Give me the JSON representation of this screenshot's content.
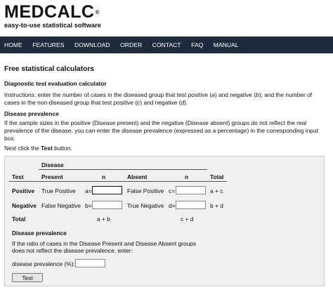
{
  "header": {
    "logo": "MEDCALC",
    "registered": "®",
    "tagline": "easy-to-use statistical software"
  },
  "nav": [
    "HOME",
    "FEATURES",
    "DOWNLOAD",
    "ORDER",
    "CONTACT",
    "FAQ",
    "MANUAL"
  ],
  "page": {
    "title": "Free statistical calculators",
    "subtitle": "Diagnostic test evaluation calculator",
    "instructions_pre": "Instructions: enter the number of cases in the diseased group that test positive (",
    "instructions_a": "a",
    "instructions_mid1": ") and negative (",
    "instructions_b": "b",
    "instructions_mid2": "); and the number of cases in the non-diseased group that test positive (",
    "instructions_c": "c",
    "instructions_mid3": ") and negative (",
    "instructions_d": "d",
    "instructions_end": ").",
    "prevalence_heading": "Disease prevalence",
    "prevalence_text": "If the sample sizes in the positive (Disease present) and the negative (Disease absent) groups do not reflect the real prevalence of the disease, you can enter the disease prevalence (expressed as a percentage) in the corresponding input box.",
    "next_pre": "Next click the ",
    "next_bold": "Test",
    "next_post": " button."
  },
  "form": {
    "disease_header": "Disease",
    "col_test": "Test",
    "col_present": "Present",
    "col_n1": "n",
    "col_absent": "Absent",
    "col_n2": "n",
    "col_total": "Total",
    "row_positive": "Positive",
    "true_positive": "True Positive",
    "label_a": "a=",
    "false_positive": "False Positive",
    "label_c": "c=",
    "total_ac": "a + c",
    "row_negative": "Negative",
    "false_negative": "False Negative",
    "label_b": "b=",
    "true_negative": "True Negative",
    "label_d": "d=",
    "total_bd": "b + d",
    "row_total": "Total",
    "total_ab": "a + b",
    "total_cd": "c + d",
    "prev_heading": "Disease prevalence",
    "prev_note_1": "If the ratio of cases in the Disease Present and Disease Absent groups",
    "prev_note_2": "does not reflect the disease prevalence, enter:",
    "prev_label": "disease prevalence (%):",
    "input_a": "",
    "input_b": "",
    "input_c": "",
    "input_d": "",
    "input_prev": "",
    "test_button": "Test"
  }
}
